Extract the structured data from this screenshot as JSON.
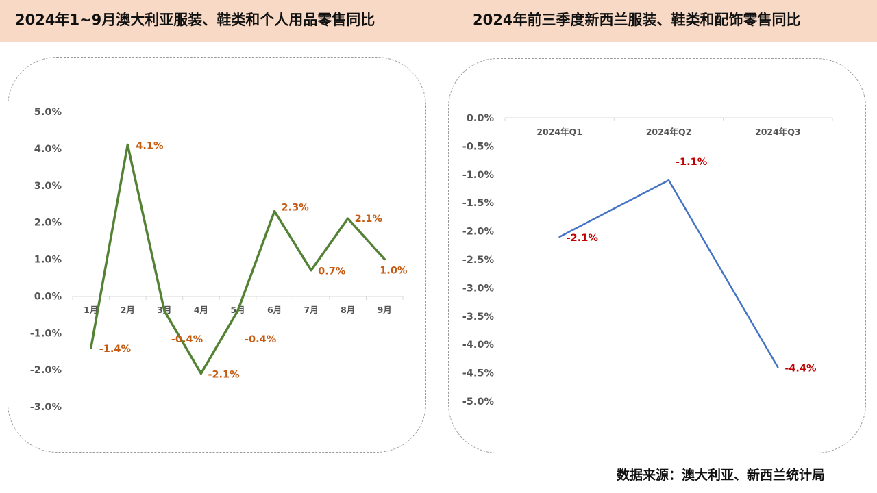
{
  "header": {
    "left_title": "2024年1~9月澳大利亚服装、鞋类和个人用品零售同比",
    "right_title": "2024年前三季度新西兰服装、鞋类和配饰零售同比"
  },
  "source": "数据来源：澳大利亚、新西兰统计局",
  "colors": {
    "header_bg": "#f8d9c6",
    "line_left": "#548235",
    "line_right": "#4472c4",
    "label_left": "#c55a11",
    "label_right": "#c00000"
  },
  "chart_data": [
    {
      "type": "line",
      "title": "2024年1~9月澳大利亚服装、鞋类和个人用品零售同比",
      "categories": [
        "1月",
        "2月",
        "3月",
        "4月",
        "5月",
        "6月",
        "7月",
        "8月",
        "9月"
      ],
      "series": [
        {
          "values": [
            -1.4,
            4.1,
            -0.4,
            -2.1,
            -0.4,
            2.3,
            0.7,
            2.1,
            1.0
          ]
        }
      ],
      "data_labels": [
        "-1.4%",
        "4.1%",
        "-0.4%",
        "-2.1%",
        "-0.4%",
        "2.3%",
        "0.7%",
        "2.1%",
        "1.0%"
      ],
      "yticks": [
        "5.0%",
        "4.0%",
        "3.0%",
        "2.0%",
        "1.0%",
        "0.0%",
        "-1.0%",
        "-2.0%",
        "-3.0%"
      ],
      "ylim": [
        -3.0,
        5.0
      ],
      "grid": false
    },
    {
      "type": "line",
      "title": "2024年前三季度新西兰服装、鞋类和配饰零售同比",
      "categories": [
        "2024年Q1",
        "2024年Q2",
        "2024年Q3"
      ],
      "series": [
        {
          "values": [
            -2.1,
            -1.1,
            -4.4
          ]
        }
      ],
      "data_labels": [
        "-2.1%",
        "-1.1%",
        "-4.4%"
      ],
      "yticks": [
        "0.0%",
        "-0.5%",
        "-1.0%",
        "-1.5%",
        "-2.0%",
        "-2.5%",
        "-3.0%",
        "-3.5%",
        "-4.0%",
        "-4.5%",
        "-5.0%"
      ],
      "ylim": [
        -5.0,
        0.0
      ],
      "grid": false
    }
  ]
}
